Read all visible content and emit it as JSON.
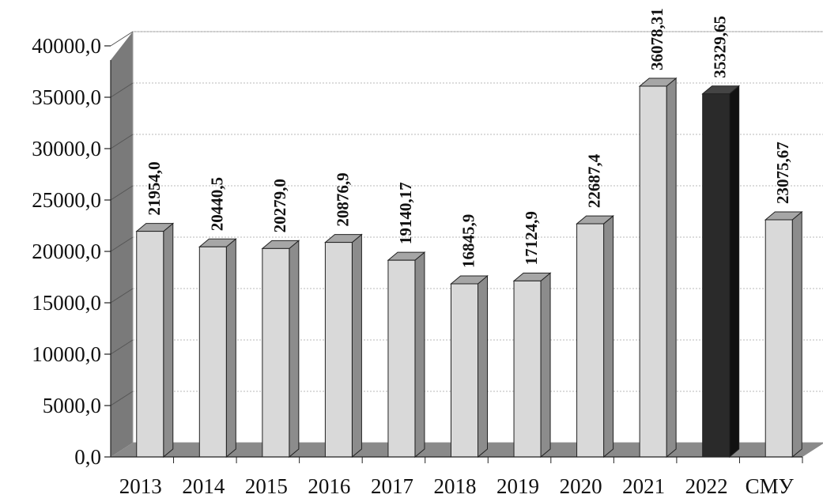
{
  "chart_data": {
    "type": "bar",
    "categories": [
      "2013",
      "2014",
      "2015",
      "2016",
      "2017",
      "2018",
      "2019",
      "2020",
      "2021",
      "2022",
      "СМУ"
    ],
    "values": [
      21954.0,
      20440.5,
      20279.0,
      20876.9,
      19140.17,
      16845.9,
      17124.9,
      22687.4,
      36078.31,
      35329.65,
      23075.67
    ],
    "data_labels": [
      "21954,0",
      "20440,5",
      "20279,0",
      "20876,9",
      "19140,17",
      "16845,9",
      "17124,9",
      "22687,4",
      "36078,31",
      "35329,65",
      "23075,67"
    ],
    "y_ticks": [
      "0,0",
      "5000,0",
      "10000,0",
      "15000,0",
      "20000,0",
      "25000,0",
      "30000,0",
      "35000,0",
      "40000,0"
    ],
    "ylim": [
      0,
      40000
    ],
    "grid": true,
    "legend": "none",
    "title": "",
    "xlabel": "",
    "ylabel": "",
    "colors": {
      "bar_front": "#d9d9d9",
      "bar_side": "#8c8c8c",
      "bar_top": "#a6a6a6",
      "highlight_front": "#2a2a2a",
      "highlight_side": "#111111",
      "highlight_top": "#444444",
      "wall": "#7a7a7a",
      "floor": "#8a8a8a",
      "gridline": "#c8c8c8"
    },
    "highlight_category": "2022"
  }
}
